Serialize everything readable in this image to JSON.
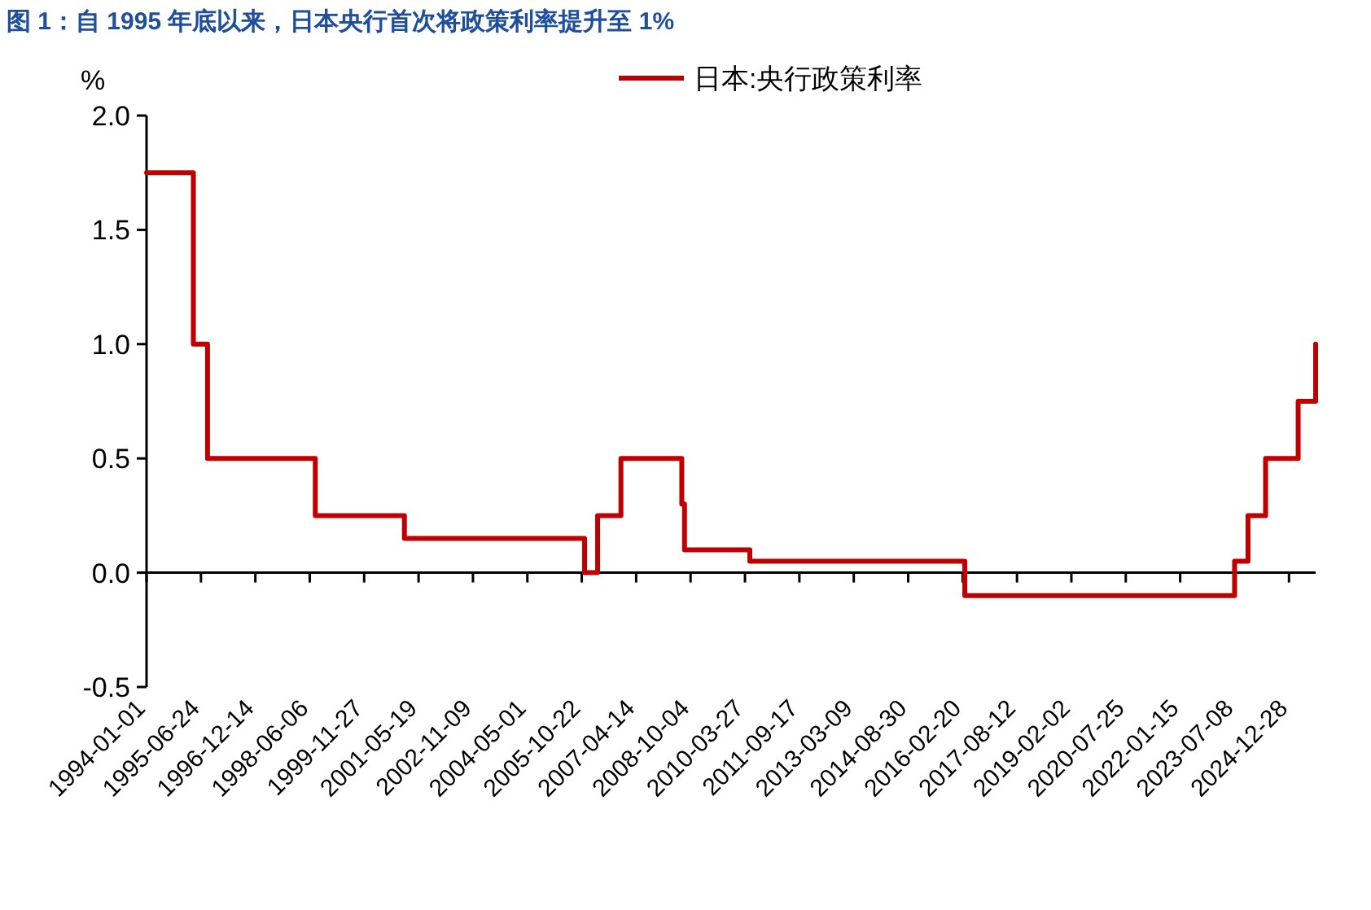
{
  "chart_data": {
    "type": "step",
    "title": "图 1：自 1995 年底以来，日本央行首次将政策利率提升至 1%",
    "ylabel": "%",
    "x": [
      "1994-01-01",
      "1995-04-10",
      "1995-08-28",
      "1998-07-31",
      "2000-12-30",
      "2005-11-19",
      "2006-03-28",
      "2006-11-14",
      "2008-07-09",
      "2008-08-05",
      "2010-05-14",
      "2016-03-13",
      "2023-07-08",
      "2023-11-18",
      "2024-05-10",
      "2025-03-29",
      "2025-09-18"
    ],
    "series": [
      {
        "name": "日本:央行政策利率",
        "color": "#c00000",
        "values": [
          1.75,
          1.0,
          0.5,
          0.25,
          0.15,
          0.0,
          0.25,
          0.5,
          0.3,
          0.1,
          0.05,
          -0.1,
          0.05,
          0.25,
          0.5,
          0.75,
          1.0
        ]
      }
    ],
    "xlim": [
      "1994-01-01",
      "2025-09-18"
    ],
    "xticks": [
      "1994-01-01",
      "1995-06-24",
      "1996-12-14",
      "1998-06-06",
      "1999-11-27",
      "2001-05-19",
      "2002-11-09",
      "2004-05-01",
      "2005-10-22",
      "2007-04-14",
      "2008-10-04",
      "2010-03-27",
      "2011-09-17",
      "2013-03-09",
      "2014-08-30",
      "2016-02-20",
      "2017-08-12",
      "2019-02-02",
      "2020-07-25",
      "2022-01-15",
      "2023-07-08",
      "2024-12-28"
    ],
    "ylim": [
      -0.5,
      2.0
    ],
    "yticks": [
      {
        "value": -0.5,
        "label": "-0.5"
      },
      {
        "value": 0,
        "label": "0.0"
      },
      {
        "value": 0.5,
        "label": "0.5"
      },
      {
        "value": 1,
        "label": "1.0"
      },
      {
        "value": 1.5,
        "label": "1.5"
      },
      {
        "value": 2,
        "label": "2.0"
      }
    ],
    "legend": "top right",
    "line_style": "solid",
    "marker": "none"
  }
}
